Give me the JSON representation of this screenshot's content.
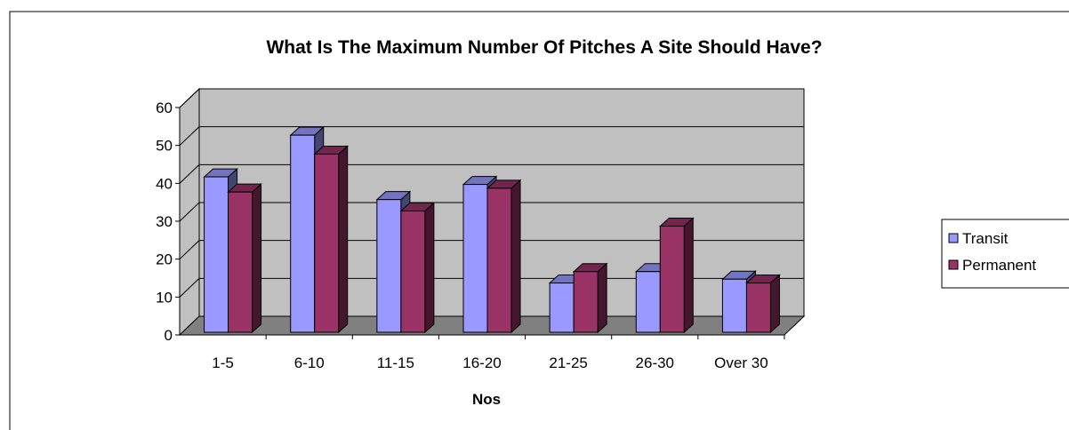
{
  "chart_data": {
    "type": "bar",
    "title": "What Is The Maximum Number Of Pitches A Site Should Have?",
    "xlabel": "Nos",
    "ylabel": "",
    "categories": [
      "1-5",
      "6-10",
      "11-15",
      "16-20",
      "21-25",
      "26-30",
      "Over 30"
    ],
    "ylim": [
      0,
      60
    ],
    "yticks": [
      "0",
      "10",
      "20",
      "30",
      "40",
      "50",
      "60"
    ],
    "series": [
      {
        "name": "Transit",
        "values": [
          41,
          52,
          35,
          39,
          13,
          16,
          14
        ],
        "color": "#9999ff"
      },
      {
        "name": "Permanent",
        "values": [
          37,
          47,
          32,
          38,
          16,
          28,
          13
        ],
        "color": "#993366"
      }
    ],
    "grid": true,
    "style": "3d-clustered",
    "legend": "right",
    "colors": {
      "wall": "#c0c0c0",
      "floor": "#808080",
      "frame": "#000000"
    }
  }
}
